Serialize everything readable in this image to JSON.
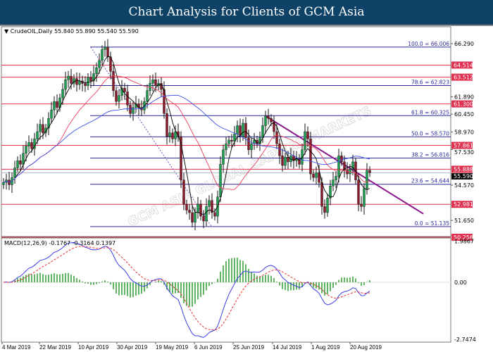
{
  "header": {
    "title": "Chart Analysis for Clients of GCM Asia"
  },
  "watermark": "GCM ASIA GLOBAL CAPITAL MARKETS",
  "colors": {
    "title_bg": "#0e4266",
    "bull": "#1aa050",
    "bear": "#8b1a2a",
    "fib": "#2b2b9c",
    "sr": "#e0304f",
    "trend": "#8b1a8b",
    "ma_fast": "#000000",
    "ma_mid": "#e8405a",
    "ma_slow": "#3b50e8",
    "macd": "#3b3be8",
    "signal": "#e83030",
    "hist": "#2e9a2e"
  },
  "chart_data": [
    {
      "type": "candlestick",
      "label": "CrudeOIL,Daily",
      "ohlc_label": "55.840 55.890 55.540 55.590",
      "ylim": [
        50.0,
        66.9
      ],
      "y_ticks": [
        "66.290",
        "61.890",
        "60.450",
        "58.970",
        "57.530",
        "54.570",
        "51.650"
      ],
      "x_ticks": [
        "4 Mar 2019",
        "22 Mar 2019",
        "10 Apr 2019",
        "30 Apr 2019",
        "19 May 2019",
        "6 Jun 2019",
        "25 Jun 2019",
        "14 Jul 2019",
        "1 Aug 2019",
        "20 Aug 2019"
      ],
      "current_price": "55.590",
      "close": [
        54.8,
        55.0,
        54.6,
        55.2,
        56.0,
        56.6,
        56.3,
        57.2,
        57.8,
        58.1,
        57.6,
        58.4,
        59.0,
        59.6,
        58.9,
        59.3,
        60.1,
        60.8,
        61.5,
        61.0,
        61.8,
        62.5,
        63.3,
        63.6,
        63.0,
        63.4,
        62.9,
        63.2,
        63.0,
        62.8,
        63.5,
        63.2,
        63.8,
        64.3,
        64.9,
        65.8,
        66.0,
        65.2,
        64.0,
        62.4,
        61.5,
        62.0,
        62.6,
        62.3,
        61.2,
        60.5,
        61.0,
        61.3,
        61.0,
        60.8,
        61.5,
        62.4,
        63.0,
        63.3,
        62.8,
        63.0,
        62.5,
        60.5,
        58.6,
        58.9,
        58.4,
        59.0,
        58.6,
        55.0,
        53.0,
        52.5,
        52.3,
        51.5,
        52.3,
        53.0,
        52.0,
        51.6,
        52.8,
        53.3,
        52.3,
        52.0,
        53.6,
        56.3,
        57.5,
        58.0,
        58.3,
        58.2,
        58.8,
        59.5,
        58.6,
        59.7,
        58.5,
        57.5,
        58.0,
        58.3,
        58.0,
        58.5,
        59.5,
        60.3,
        60.1,
        59.8,
        59.0,
        58.0,
        57.0,
        56.2,
        56.9,
        56.5,
        57.0,
        56.6,
        56.8,
        56.3,
        57.5,
        59.0,
        58.4,
        55.5,
        55.2,
        55.6,
        54.8,
        52.8,
        52.3,
        53.5,
        54.5,
        55.0,
        55.3,
        57.0,
        56.5,
        55.8,
        55.5,
        55.9,
        56.5,
        55.0,
        53.0,
        52.8,
        54.3,
        55.8,
        55.6
      ],
      "support_resistance": [
        {
          "value": 64.514,
          "label": "64.514"
        },
        {
          "value": 63.512,
          "label": "63.512"
        },
        {
          "value": 61.3,
          "label": "61.300"
        },
        {
          "value": 57.861,
          "label": "57.861"
        },
        {
          "value": 55.888,
          "label": "55.888"
        },
        {
          "value": 52.981,
          "label": "52.981"
        },
        {
          "value": 50.256,
          "label": "50.256"
        }
      ],
      "fibonacci": [
        {
          "value": 66.006,
          "label": "100.0 = 66.006"
        },
        {
          "value": 62.823,
          "label": "78.6  = 62.823"
        },
        {
          "value": 60.325,
          "label": "61.8 = 60.325"
        },
        {
          "value": 58.57,
          "label": "50.0 = 58.570"
        },
        {
          "value": 56.816,
          "label": "38.2 = 56.816"
        },
        {
          "value": 54.644,
          "label": "23.6 = 54.644"
        },
        {
          "value": 51.135,
          "label": "0.0 = 51.135"
        }
      ],
      "trendline": {
        "from": {
          "bar": 93,
          "price": 60.3
        },
        "to": {
          "bar": 149,
          "price": 52.2
        }
      },
      "fib_anchor_line": {
        "from": {
          "bar": 31,
          "price": 66.0
        },
        "to": {
          "bar": 74,
          "price": 51.1
        }
      }
    },
    {
      "type": "line",
      "label": "MACD(12,26,9) -0.1767 -0.3164 0.1397",
      "ylim": [
        -2.7474,
        1.9867
      ],
      "y_ticks": [
        "1.9867",
        "0.00",
        "-2.7474"
      ]
    }
  ]
}
